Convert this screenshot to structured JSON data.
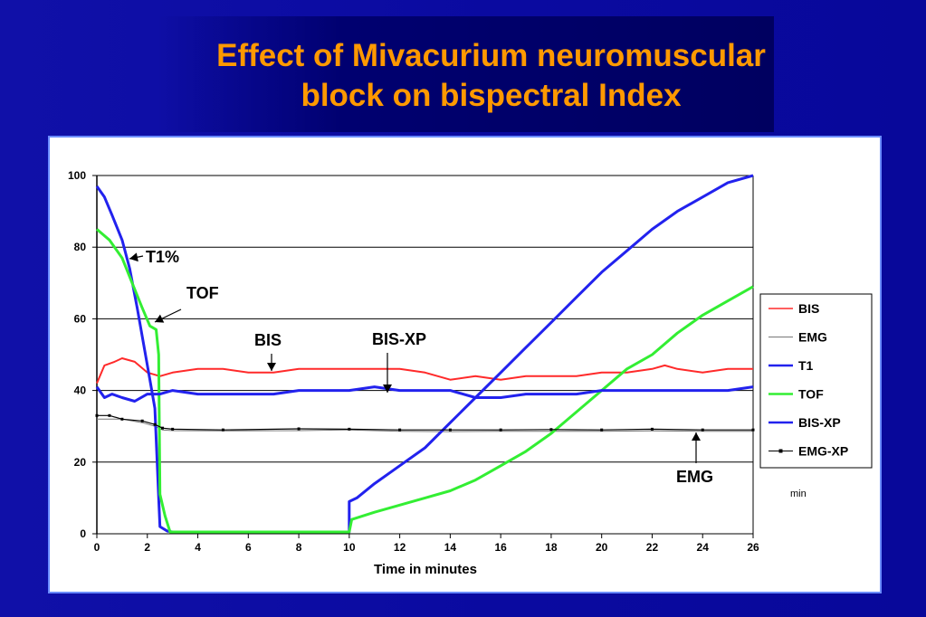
{
  "slide": {
    "title_line1": "Effect of Mivacurium neuromuscular",
    "title_line2": "block on bispectral Index"
  },
  "chart_data": {
    "type": "line",
    "title": "",
    "xlabel": "Time in minutes",
    "ylabel": "",
    "xlim": [
      0,
      26
    ],
    "ylim": [
      0,
      100
    ],
    "x_ticks": [
      0,
      2,
      4,
      6,
      8,
      10,
      12,
      14,
      16,
      18,
      20,
      22,
      24,
      26
    ],
    "y_ticks": [
      0,
      20,
      40,
      60,
      80,
      100
    ],
    "grid": "horizontal",
    "legend_position": "right",
    "series": [
      {
        "name": "BIS",
        "color": "#ff2a2a",
        "width": 2,
        "points": [
          [
            0,
            42
          ],
          [
            0.3,
            47
          ],
          [
            0.7,
            48
          ],
          [
            1,
            49
          ],
          [
            1.5,
            48
          ],
          [
            2,
            45
          ],
          [
            2.5,
            44
          ],
          [
            3,
            45
          ],
          [
            4,
            46
          ],
          [
            5,
            46
          ],
          [
            6,
            45
          ],
          [
            7,
            45
          ],
          [
            8,
            46
          ],
          [
            9,
            46
          ],
          [
            10,
            46
          ],
          [
            11,
            46
          ],
          [
            12,
            46
          ],
          [
            13,
            45
          ],
          [
            14,
            43
          ],
          [
            15,
            44
          ],
          [
            16,
            43
          ],
          [
            17,
            44
          ],
          [
            18,
            44
          ],
          [
            19,
            44
          ],
          [
            20,
            45
          ],
          [
            21,
            45
          ],
          [
            22,
            46
          ],
          [
            22.5,
            47
          ],
          [
            23,
            46
          ],
          [
            24,
            45
          ],
          [
            25,
            46
          ],
          [
            26,
            46
          ]
        ]
      },
      {
        "name": "EMG",
        "color": "#777777",
        "width": 1,
        "points": [
          [
            0,
            32
          ],
          [
            0.5,
            32
          ],
          [
            1,
            32
          ],
          [
            1.8,
            31
          ],
          [
            2.3,
            30
          ],
          [
            2.6,
            29
          ],
          [
            3,
            28.8
          ],
          [
            5,
            28.7
          ],
          [
            8,
            28.8
          ],
          [
            10,
            29
          ],
          [
            12,
            28.6
          ],
          [
            14,
            28.5
          ],
          [
            16,
            28.6
          ],
          [
            18,
            28.6
          ],
          [
            20,
            28.6
          ],
          [
            22,
            28.7
          ],
          [
            24,
            28.6
          ],
          [
            26,
            28.6
          ]
        ]
      },
      {
        "name": "T1",
        "color": "#2222ee",
        "width": 3,
        "points": [
          [
            0,
            97
          ],
          [
            0.3,
            94
          ],
          [
            0.6,
            89
          ],
          [
            1,
            82
          ],
          [
            1.3,
            74
          ],
          [
            1.6,
            63
          ],
          [
            1.9,
            51
          ],
          [
            2.1,
            43
          ],
          [
            2.3,
            35
          ],
          [
            2.45,
            10
          ],
          [
            2.5,
            2
          ],
          [
            2.8,
            0.7
          ],
          [
            3,
            0.5
          ],
          [
            10,
            0.5
          ],
          [
            10,
            9
          ],
          [
            10.3,
            10
          ],
          [
            11,
            14
          ],
          [
            12,
            19
          ],
          [
            13,
            24
          ],
          [
            14,
            31
          ],
          [
            15,
            38
          ],
          [
            16,
            45
          ],
          [
            17,
            52
          ],
          [
            18,
            59
          ],
          [
            19,
            66
          ],
          [
            20,
            73
          ],
          [
            21,
            79
          ],
          [
            22,
            85
          ],
          [
            23,
            90
          ],
          [
            24,
            94
          ],
          [
            25,
            98
          ],
          [
            26,
            100
          ]
        ]
      },
      {
        "name": "TOF",
        "color": "#33ee33",
        "width": 3,
        "points": [
          [
            0,
            85
          ],
          [
            0.5,
            82
          ],
          [
            1,
            77
          ],
          [
            1.4,
            70
          ],
          [
            1.8,
            63
          ],
          [
            2.1,
            58
          ],
          [
            2.35,
            57
          ],
          [
            2.45,
            50
          ],
          [
            2.5,
            11
          ],
          [
            2.7,
            5
          ],
          [
            2.9,
            0.5
          ],
          [
            10,
            0.5
          ],
          [
            10.1,
            4
          ],
          [
            11,
            6
          ],
          [
            12,
            8
          ],
          [
            13,
            10
          ],
          [
            14,
            12
          ],
          [
            15,
            15
          ],
          [
            16,
            19
          ],
          [
            17,
            23
          ],
          [
            18,
            28
          ],
          [
            19,
            34
          ],
          [
            20,
            40
          ],
          [
            21,
            46
          ],
          [
            22,
            50
          ],
          [
            23,
            56
          ],
          [
            24,
            61
          ],
          [
            25,
            65
          ],
          [
            26,
            69
          ]
        ]
      },
      {
        "name": "BIS-XP",
        "color": "#2222ee",
        "width": 3,
        "points": [
          [
            0,
            41
          ],
          [
            0.3,
            38
          ],
          [
            0.6,
            39
          ],
          [
            1,
            38
          ],
          [
            1.5,
            37
          ],
          [
            2,
            39
          ],
          [
            2.5,
            39
          ],
          [
            3,
            40
          ],
          [
            4,
            39
          ],
          [
            5,
            39
          ],
          [
            6,
            39
          ],
          [
            7,
            39
          ],
          [
            8,
            40
          ],
          [
            9,
            40
          ],
          [
            10,
            40
          ],
          [
            11,
            41
          ],
          [
            12,
            40
          ],
          [
            13,
            40
          ],
          [
            14,
            40
          ],
          [
            15,
            38
          ],
          [
            16,
            38
          ],
          [
            17,
            39
          ],
          [
            18,
            39
          ],
          [
            19,
            39
          ],
          [
            20,
            40
          ],
          [
            21,
            40
          ],
          [
            22,
            40
          ],
          [
            23,
            40
          ],
          [
            24,
            40
          ],
          [
            25,
            40
          ],
          [
            26,
            41
          ]
        ]
      },
      {
        "name": "EMG-XP",
        "color": "#000000",
        "width": 1.2,
        "markers": true,
        "points": [
          [
            0,
            33
          ],
          [
            0.5,
            33
          ],
          [
            1,
            32
          ],
          [
            1.8,
            31.5
          ],
          [
            2.3,
            30.5
          ],
          [
            2.6,
            29.5
          ],
          [
            3,
            29.2
          ],
          [
            5,
            29
          ],
          [
            8,
            29.3
          ],
          [
            10,
            29.2
          ],
          [
            12,
            29
          ],
          [
            14,
            29
          ],
          [
            16,
            29
          ],
          [
            18,
            29.1
          ],
          [
            20,
            29
          ],
          [
            22,
            29.2
          ],
          [
            24,
            29
          ],
          [
            26,
            29
          ]
        ]
      }
    ],
    "annotations": [
      {
        "text": "T1%",
        "x": 1.3,
        "y": 77
      },
      {
        "text": "TOF",
        "x": 2.4,
        "y": 58
      },
      {
        "text": "BIS",
        "x": 6.6,
        "y": 45
      },
      {
        "text": "BIS-XP",
        "x": 11.5,
        "y": 41
      },
      {
        "text": "EMG",
        "x": 23.8,
        "y": 28
      }
    ],
    "unit_label": "min"
  }
}
